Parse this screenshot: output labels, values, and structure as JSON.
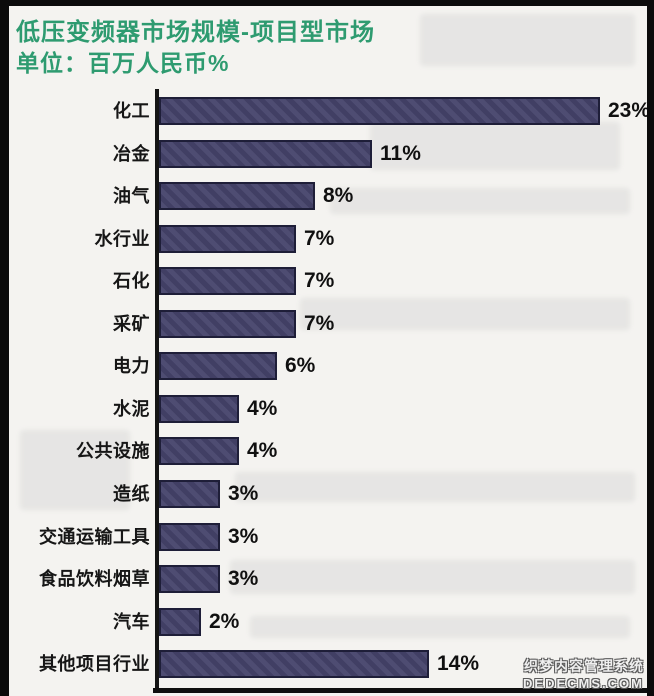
{
  "page": {
    "title": "低压变频器市场规模-项目型市场",
    "subtitle": "单位：百万人民币%"
  },
  "chart_data": {
    "type": "bar",
    "orientation": "horizontal",
    "title": "低压变频器市场规模-项目型市场",
    "unit_label": "单位：百万人民币%",
    "categories": [
      "化工",
      "冶金",
      "油气",
      "水行业",
      "石化",
      "采矿",
      "电力",
      "水泥",
      "公共设施",
      "造纸",
      "交通运输工具",
      "食品饮料烟草",
      "汽车",
      "其他项目行业"
    ],
    "values": [
      23,
      11,
      8,
      7,
      7,
      7,
      6,
      4,
      4,
      3,
      3,
      3,
      2,
      14
    ],
    "data_labels": [
      "23%",
      "11%",
      "8%",
      "7%",
      "7%",
      "7%",
      "6%",
      "4%",
      "4%",
      "3%",
      "3%",
      "3%",
      "2%",
      "14%"
    ],
    "value_suffix": "%",
    "xlim": [
      0,
      23
    ],
    "grid": false,
    "legend": false,
    "bar_color": "#45436a",
    "bar_border_color": "#1e1e38"
  },
  "watermark": {
    "line1": "织梦内容管理系统",
    "line2": "DEDECMS.COM"
  },
  "colors": {
    "title_green": "#2e9b70",
    "label_black": "#161616",
    "paper": "#f4f3f0",
    "scan_edge_black": "#0b0b0b"
  }
}
